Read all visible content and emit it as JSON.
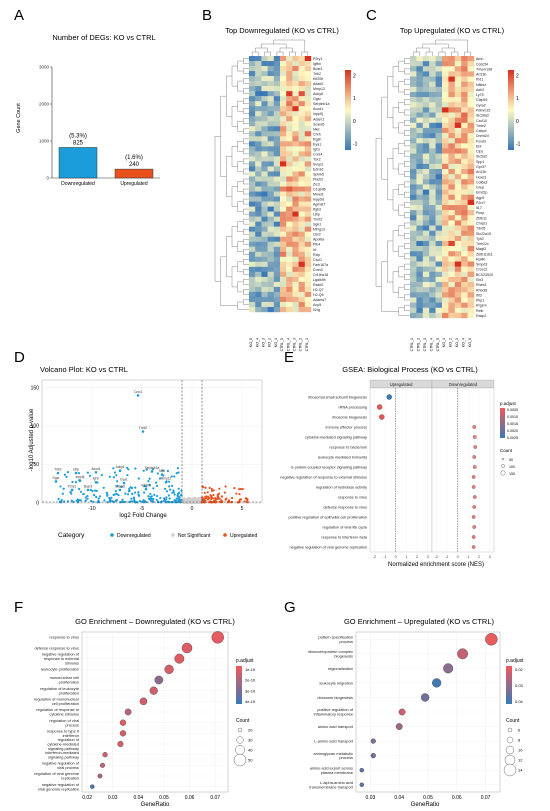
{
  "figure": {
    "panel_letters": [
      "A",
      "B",
      "C",
      "D",
      "E",
      "F",
      "G"
    ]
  },
  "colors": {
    "down_blue": "#1b9dd9",
    "up_orange": "#e8501c",
    "not_sig_gray": "#cfcfcf",
    "heat_low": "#3a78b6",
    "heat_mid": "#fffbc4",
    "heat_high": "#d7301f",
    "padj_low": "#f05a5a",
    "padj_high": "#3a7ab8"
  },
  "chart_data": [
    {
      "panel": "A",
      "type": "bar",
      "title": "Number of DEGs: KO vs CTRL",
      "xlabel": "",
      "ylabel": "Gene Count",
      "categories": [
        "Downregulated",
        "Upregulated"
      ],
      "values": [
        825,
        240
      ],
      "data_labels": [
        "(5.3%)\n825",
        "(1.6%)\n240"
      ],
      "ylim": [
        0,
        3000
      ],
      "yticks": [
        "0",
        "1000",
        "2000",
        "3000"
      ],
      "grid": false,
      "colors": [
        "#1b9dd9",
        "#e8501c"
      ]
    },
    {
      "panel": "B",
      "type": "heatmap",
      "title": "Top Downregulated (KO vs CTRL)",
      "rows": [
        "P2ry1",
        "Igfbn",
        "Bcar3",
        "Trib2",
        "Kif20b",
        "Adad2",
        "Mmp12",
        "Adcy6",
        "Ggsr",
        "Serpinb1a",
        "Acod1",
        "Inpp5j",
        "Adam1",
        "Scara5",
        "Nkd",
        "Chrh",
        "Rgsh",
        "Eya1",
        "Igf1r",
        "Col14",
        "Tox2",
        "Svop2",
        "Edn3d",
        "Spink5",
        "Pla2i2",
        "Zic3",
        "C1qtnf6",
        "Mmel1",
        "Inpp5d",
        "Agmat7",
        "Ifgb3",
        "Ltbp",
        "Tnnt2",
        "Sgk1",
        "Nfrrg13",
        "Osr2",
        "Apoltla",
        "Plb4",
        "Irf",
        "Rxlp",
        "Cxcl1",
        "Fam167a",
        "Cmn3",
        "Cr1l4w18",
        "Lgals9b",
        "Rsad2",
        "H2-Q7",
        "H2-Q5",
        "Adams7",
        "Acp5",
        "Il2rg"
      ],
      "columns": [
        "KO_5",
        "KO_4",
        "KO_3",
        "KO_2",
        "KO_1",
        "CTRL_5",
        "CTRL_4",
        "CTRL_3",
        "CTRL_2",
        "CTRL_1"
      ],
      "legend_ticks": [
        "2",
        "1",
        "0",
        "-1"
      ]
    },
    {
      "panel": "C",
      "type": "heatmap",
      "title": "Top Upregulated (KO vs CTRL)",
      "rows": [
        "Amn",
        "Ccdc54",
        "Tmem198",
        "Arl13b",
        "Ifrd1",
        "Nfkbiz",
        "Asb2",
        "Ly75",
        "Ctsp59",
        "Gyra2",
        "Pdmm15",
        "Slc28a2",
        "Cxcl10",
        "Tmie2",
        "Cabp4",
        "Dnmt2d",
        "Foxd3",
        "Ehf",
        "Clps",
        "Slc5a2",
        "Spp1",
        "Gpr37",
        "Arl13b",
        "Hoxd1",
        "Col6a3",
        "Grep",
        "Emd2p",
        "Agp9",
        "P2rx7",
        "Il17",
        "Pcnp",
        "Zbtb11",
        "Cmss1",
        "Tdrd5",
        "Slc22a15",
        "Tyh2",
        "Trim12c",
        "Magt3",
        "Zbtb11ds1",
        "Rpl4b",
        "Smpd3",
        "Crocc2",
        "BC023920",
        "Ebi3",
        "Rheb1",
        "Rhbdl3",
        "Ifit3",
        "Pkp1",
        "Rrgsm",
        "Relb",
        "Rasp2"
      ],
      "columns": [
        "CTRL_1",
        "CTRL_2",
        "CTRL_3",
        "CTRL_4",
        "CTRL_5",
        "KO_1",
        "KO_2",
        "KO_3",
        "KO_4",
        "KO_5"
      ],
      "legend_ticks": [
        "2",
        "1",
        "0",
        "-1"
      ]
    },
    {
      "panel": "D",
      "type": "scatter",
      "title": "Volcano Plot: KO vs CTRL",
      "xlabel": "log2 Fold Change",
      "ylabel": "-log10 Adjusted p-value",
      "xlim": [
        -15,
        7
      ],
      "ylim": [
        0,
        160
      ],
      "xticks": [
        -10,
        -5,
        0,
        5
      ],
      "yticks": [
        0,
        50,
        100,
        150
      ],
      "legend_title": "Category",
      "legend_position": "bottom",
      "series": [
        {
          "name": "Downregulated",
          "color": "#1b9dd9"
        },
        {
          "name": "Not Significant",
          "color": "#cfcfcf"
        },
        {
          "name": "Upregulated",
          "color": "#e8501c"
        }
      ],
      "labeled_points": [
        {
          "label": "Cnn3",
          "x": -5.4,
          "y": 140
        },
        {
          "label": "Tnnt2",
          "x": -4.9,
          "y": 93
        },
        {
          "label": "Trib2",
          "x": -13.4,
          "y": 39
        },
        {
          "label": "Ltbp",
          "x": -11.6,
          "y": 39
        },
        {
          "label": "Acod1",
          "x": -9.6,
          "y": 40
        },
        {
          "label": "Adcy6",
          "x": -7.2,
          "y": 42
        },
        {
          "label": "Serpinb1a",
          "x": -4.0,
          "y": 41
        },
        {
          "label": "Nkd",
          "x": -3.0,
          "y": 37
        },
        {
          "label": "Ggsr",
          "x": -13.6,
          "y": 28
        },
        {
          "label": "Inpp5j",
          "x": -11.2,
          "y": 29
        },
        {
          "label": "Mmp12",
          "x": -2.6,
          "y": 27
        },
        {
          "label": "Igf1r",
          "x": -9.6,
          "y": 27
        },
        {
          "label": "Eya1",
          "x": -6.8,
          "y": 26
        },
        {
          "label": "P2ry1",
          "x": -12.0,
          "y": 17
        },
        {
          "label": "Bcar3",
          "x": -10.4,
          "y": 17
        },
        {
          "label": "Scara5",
          "x": -7.2,
          "y": 17
        },
        {
          "label": "Kif20b",
          "x": -4.6,
          "y": 18
        }
      ]
    },
    {
      "panel": "E",
      "type": "scatter",
      "title": "GSEA: Biological Process (KO vs CTRL)",
      "xlabel": "Normalized enrichment score (NES)",
      "facets": [
        "Upregulated",
        "Downregulated"
      ],
      "xticks": [
        "-2",
        "-1",
        "0",
        "1",
        "2",
        "3"
      ],
      "legend_title_color": "p.adjust",
      "legend_color_ticks": [
        "0.0005",
        "0.0010",
        "0.0015",
        "0.0020",
        "0.0025"
      ],
      "legend_title_size": "Count",
      "legend_size_ticks": [
        "50",
        "100",
        "150"
      ],
      "terms": [
        "ribosomal small subunit biogenesis",
        "rRNA processing",
        "ribosome biogenesis",
        "immune effector process",
        "cytokine-mediated signaling pathway",
        "response to bacterium",
        "leukocyte mediated immunity",
        "G protein-coupled receptor signaling pathway",
        "negative regulation of response to external stimulus",
        "regulation of hydrolase activity",
        "response to virus",
        "defense response to virus",
        "positive regulation of epithelial cell proliferation",
        "regulation of viral life cycle",
        "response to interferon-beta",
        "negative regulation of viral genome replication"
      ],
      "nes": [
        -0.6,
        -1.5,
        -1.3,
        1.55,
        1.6,
        1.65,
        1.55,
        1.6,
        1.5,
        1.5,
        1.6,
        1.55,
        1.5,
        1.55,
        1.5,
        1.5
      ],
      "facet_of_term": [
        "Upregulated",
        "Upregulated",
        "Upregulated",
        "Downregulated",
        "Downregulated",
        "Downregulated",
        "Downregulated",
        "Downregulated",
        "Downregulated",
        "Downregulated",
        "Downregulated",
        "Downregulated",
        "Downregulated",
        "Downregulated",
        "Downregulated",
        "Downregulated"
      ]
    },
    {
      "panel": "F",
      "type": "scatter",
      "title": "GO Enrichment – Downregulated (KO vs CTRL)",
      "xlabel": "GeneRatio",
      "xlim": [
        0.018,
        0.075
      ],
      "xticks": [
        "0.02",
        "0.03",
        "0.04",
        "0.05",
        "0.06",
        "0.07"
      ],
      "legend_title_color": "p.adjust",
      "legend_color_ticks": [
        "1e-10",
        "2e-10",
        "3e-10",
        "4e-10"
      ],
      "legend_title_size": "Count",
      "legend_size_ticks": [
        "20",
        "30",
        "40",
        "50"
      ],
      "terms": [
        "response to virus",
        "defense response to virus",
        "negative regulation of response to external stimulus",
        "leukocyte proliferation",
        "mononuclear cell proliferation",
        "regulation of leukocyte proliferation",
        "regulation of mononuclear cell proliferation",
        "regulation of response to cytokine stimulus",
        "regulation of viral process",
        "response to type II interferon",
        "regulation of cytokine-mediated signaling pathway",
        "interferon-mediated signaling pathway",
        "negative regulation of viral process",
        "regulation of viral genome replication",
        "negative regulation of viral genome replication"
      ],
      "gene_ratio": [
        0.071,
        0.059,
        0.056,
        0.052,
        0.048,
        0.046,
        0.042,
        0.036,
        0.034,
        0.034,
        0.033,
        0.027,
        0.026,
        0.025,
        0.022
      ],
      "count": [
        55,
        46,
        43,
        40,
        37,
        35,
        32,
        28,
        26,
        26,
        25,
        21,
        20,
        19,
        17
      ],
      "p_adjust_frac": [
        0.05,
        0.1,
        0.1,
        0.15,
        0.55,
        0.2,
        0.2,
        0.3,
        0.1,
        0.15,
        0.15,
        0.2,
        0.25,
        0.3,
        0.95
      ]
    },
    {
      "panel": "G",
      "type": "scatter",
      "title": "GO Enrichment – Upregulated (KO vs CTRL)",
      "xlabel": "GeneRatio",
      "xlim": [
        0.025,
        0.075
      ],
      "xticks": [
        "0.03",
        "0.04",
        "0.05",
        "0.06",
        "0.07"
      ],
      "legend_title_color": "p.adjust",
      "legend_color_ticks": [
        "0.02",
        "0.03",
        "0.04"
      ],
      "legend_title_size": "Count",
      "legend_size_ticks": [
        "6",
        "8",
        "10",
        "12",
        "14"
      ],
      "terms": [
        "pattern specification process",
        "ribonucleoprotein complex biogenesis",
        "regionalization",
        "leukocyte migration",
        "ribosome biogenesis",
        "positive regulation of inflammatory response",
        "amino acid transport",
        "L-amino acid transport",
        "aminoglycan metabolic process",
        "amino acid export across plasma membrane",
        "L-alpha-amino acid transmembrane transport"
      ],
      "gene_ratio": [
        0.072,
        0.062,
        0.057,
        0.053,
        0.049,
        0.041,
        0.04,
        0.031,
        0.031,
        0.027,
        0.027
      ],
      "count": [
        15,
        13,
        12,
        11,
        10,
        8,
        8,
        6,
        6,
        5,
        5
      ],
      "p_adjust_frac": [
        0.05,
        0.25,
        0.55,
        0.95,
        0.7,
        0.2,
        0.45,
        0.6,
        0.7,
        0.85,
        0.85
      ]
    }
  ]
}
